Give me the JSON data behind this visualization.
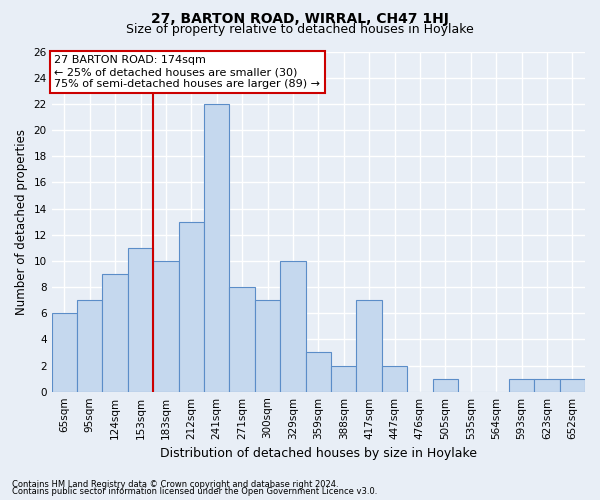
{
  "title": "27, BARTON ROAD, WIRRAL, CH47 1HJ",
  "subtitle": "Size of property relative to detached houses in Hoylake",
  "xlabel": "Distribution of detached houses by size in Hoylake",
  "ylabel": "Number of detached properties",
  "categories": [
    "65sqm",
    "95sqm",
    "124sqm",
    "153sqm",
    "183sqm",
    "212sqm",
    "241sqm",
    "271sqm",
    "300sqm",
    "329sqm",
    "359sqm",
    "388sqm",
    "417sqm",
    "447sqm",
    "476sqm",
    "505sqm",
    "535sqm",
    "564sqm",
    "593sqm",
    "623sqm",
    "652sqm"
  ],
  "values": [
    6,
    7,
    9,
    11,
    10,
    13,
    22,
    8,
    7,
    10,
    3,
    2,
    7,
    2,
    0,
    1,
    0,
    0,
    1,
    1,
    1
  ],
  "bar_color": "#c5d8ee",
  "bar_edge_color": "#5b8dc8",
  "vline_color": "#cc0000",
  "vline_index": 3.5,
  "annotation_text": "27 BARTON ROAD: 174sqm\n← 25% of detached houses are smaller (30)\n75% of semi-detached houses are larger (89) →",
  "annotation_box_color": "#ffffff",
  "annotation_box_edge_color": "#cc0000",
  "ylim": [
    0,
    26
  ],
  "yticks": [
    0,
    2,
    4,
    6,
    8,
    10,
    12,
    14,
    16,
    18,
    20,
    22,
    24,
    26
  ],
  "footer1": "Contains HM Land Registry data © Crown copyright and database right 2024.",
  "footer2": "Contains public sector information licensed under the Open Government Licence v3.0.",
  "bg_color": "#e8eef6",
  "grid_color": "#ffffff",
  "title_fontsize": 10,
  "subtitle_fontsize": 9,
  "tick_fontsize": 7.5,
  "ylabel_fontsize": 8.5,
  "xlabel_fontsize": 9,
  "annotation_fontsize": 8,
  "footer_fontsize": 6
}
